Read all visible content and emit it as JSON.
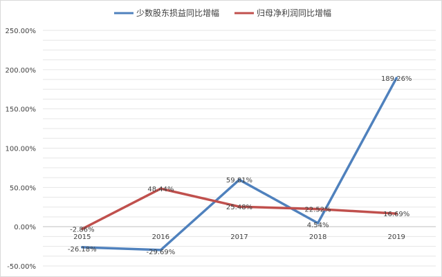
{
  "chart_data": {
    "type": "line",
    "title": "",
    "xlabel": "",
    "ylabel": "",
    "categories": [
      "2015",
      "2016",
      "2017",
      "2018",
      "2019"
    ],
    "ylim": [
      -50,
      250
    ],
    "yticks": [
      250,
      200,
      150,
      100,
      50,
      0,
      -50
    ],
    "ytick_labels": [
      "250.00%",
      "200.00%",
      "150.00%",
      "100.00%",
      "50.00%",
      "0.00%",
      "-50.00%"
    ],
    "grid": true,
    "legend_position": "top",
    "series": [
      {
        "name": "少数股东损益同比增幅",
        "color": "#4f81bd",
        "values": [
          -26.18,
          -29.69,
          59.81,
          4.54,
          189.26
        ],
        "labels": [
          "-26.18%",
          "-29.69%",
          "59.81%",
          "4.54%",
          "189.26%"
        ]
      },
      {
        "name": "归母净利润同比增幅",
        "color": "#c0504d",
        "values": [
          -2.86,
          48.44,
          25.48,
          22.52,
          16.69
        ],
        "labels": [
          "-2.86%",
          "48.44%",
          "25.48%",
          "22.52%",
          "16.69%"
        ]
      }
    ]
  }
}
